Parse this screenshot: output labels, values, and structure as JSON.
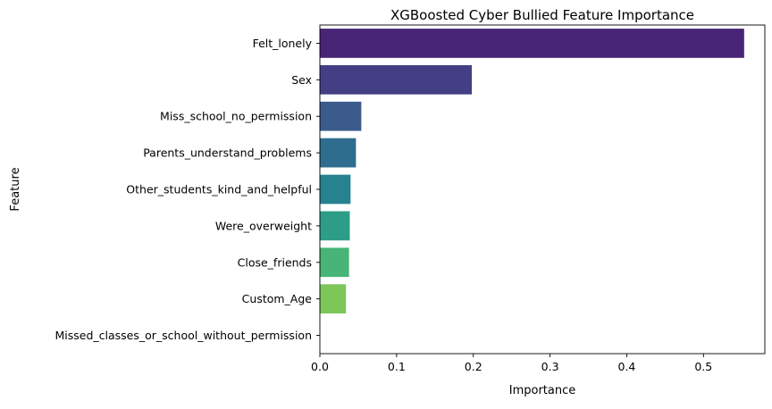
{
  "chart_data": {
    "type": "bar",
    "orientation": "horizontal",
    "title": "XGBoosted Cyber Bullied Feature Importance",
    "xlabel": "Importance",
    "ylabel": "Feature",
    "xlim": [
      0,
      0.58
    ],
    "xticks": [
      0,
      0.1,
      0.2,
      0.3,
      0.4,
      0.5
    ],
    "xtick_labels": [
      "0.0",
      "0.1",
      "0.2",
      "0.3",
      "0.4",
      "0.5"
    ],
    "grid": false,
    "legend": "none",
    "categories": [
      "Felt_lonely",
      "Sex",
      "Miss_school_no_permission",
      "Parents_understand_problems",
      "Other_students_kind_and_helpful",
      "Were_overweight",
      "Close_friends",
      "Custom_Age",
      "Missed_classes_or_school_without_permission"
    ],
    "values": [
      0.553,
      0.198,
      0.054,
      0.047,
      0.04,
      0.039,
      0.038,
      0.034,
      0.0
    ],
    "colors": [
      "#482576",
      "#443f85",
      "#3b5b8c",
      "#2e6d8e",
      "#26828e",
      "#2d9d87",
      "#48b477",
      "#7dc65a",
      "#d0e11c"
    ]
  }
}
